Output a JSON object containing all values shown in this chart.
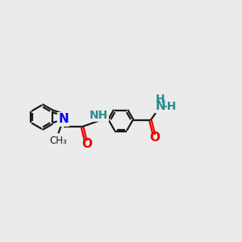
{
  "bg_color": "#ebebeb",
  "bond_color": "#1a1a1a",
  "N_color": "#0000ee",
  "O_color": "#ee0000",
  "NH_color": "#2e8b8b",
  "line_width": 1.6,
  "font_size_atom": 10,
  "fig_size": [
    3.0,
    3.0
  ],
  "dpi": 100,
  "xlim": [
    -4.5,
    7.5
  ],
  "ylim": [
    -3.2,
    3.2
  ]
}
